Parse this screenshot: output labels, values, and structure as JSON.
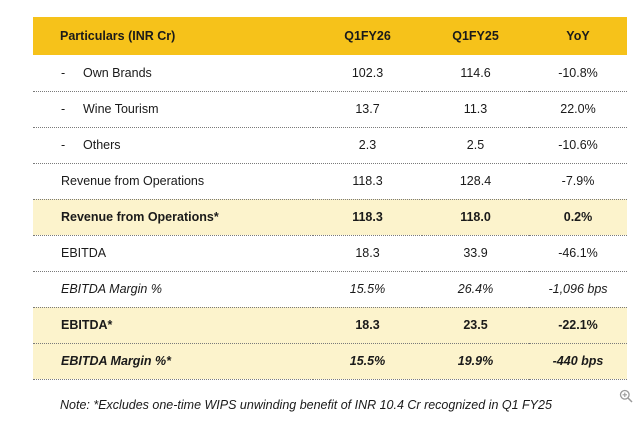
{
  "table": {
    "headers": [
      "Particulars (INR Cr)",
      "Q1FY26",
      "Q1FY25",
      "YoY"
    ],
    "rows": [
      {
        "label": "Own Brands",
        "q1fy26": "102.3",
        "q1fy25": "114.6",
        "yoy": "-10.8%"
      },
      {
        "label": "Wine Tourism",
        "q1fy26": "13.7",
        "q1fy25": "11.3",
        "yoy": "22.0%"
      },
      {
        "label": "Others",
        "q1fy26": "2.3",
        "q1fy25": "2.5",
        "yoy": "-10.6%"
      },
      {
        "label": "Revenue from Operations",
        "q1fy26": "118.3",
        "q1fy25": "128.4",
        "yoy": "-7.9%"
      },
      {
        "label": "Revenue from Operations*",
        "q1fy26": "118.3",
        "q1fy25": "118.0",
        "yoy": "0.2%"
      },
      {
        "label": "EBITDA",
        "q1fy26": "18.3",
        "q1fy25": "33.9",
        "yoy": "-46.1%"
      },
      {
        "label": "EBITDA Margin %",
        "q1fy26": "15.5%",
        "q1fy25": "26.4%",
        "yoy": "-1,096 bps"
      },
      {
        "label": "EBITDA*",
        "q1fy26": "18.3",
        "q1fy25": "23.5",
        "yoy": "-22.1%"
      },
      {
        "label": "EBITDA Margin %*",
        "q1fy26": "15.5%",
        "q1fy25": "19.9%",
        "yoy": "-440 bps"
      }
    ],
    "sub_item_marker": "-"
  },
  "note": "Note: *Excludes one-time WIPS unwinding benefit of INR 10.4 Cr recognized in Q1 FY25",
  "colors": {
    "header_bg": "#f6c21a",
    "highlight_bg": "#fcf3cc"
  },
  "icons": [
    "zoom-in-icon"
  ]
}
